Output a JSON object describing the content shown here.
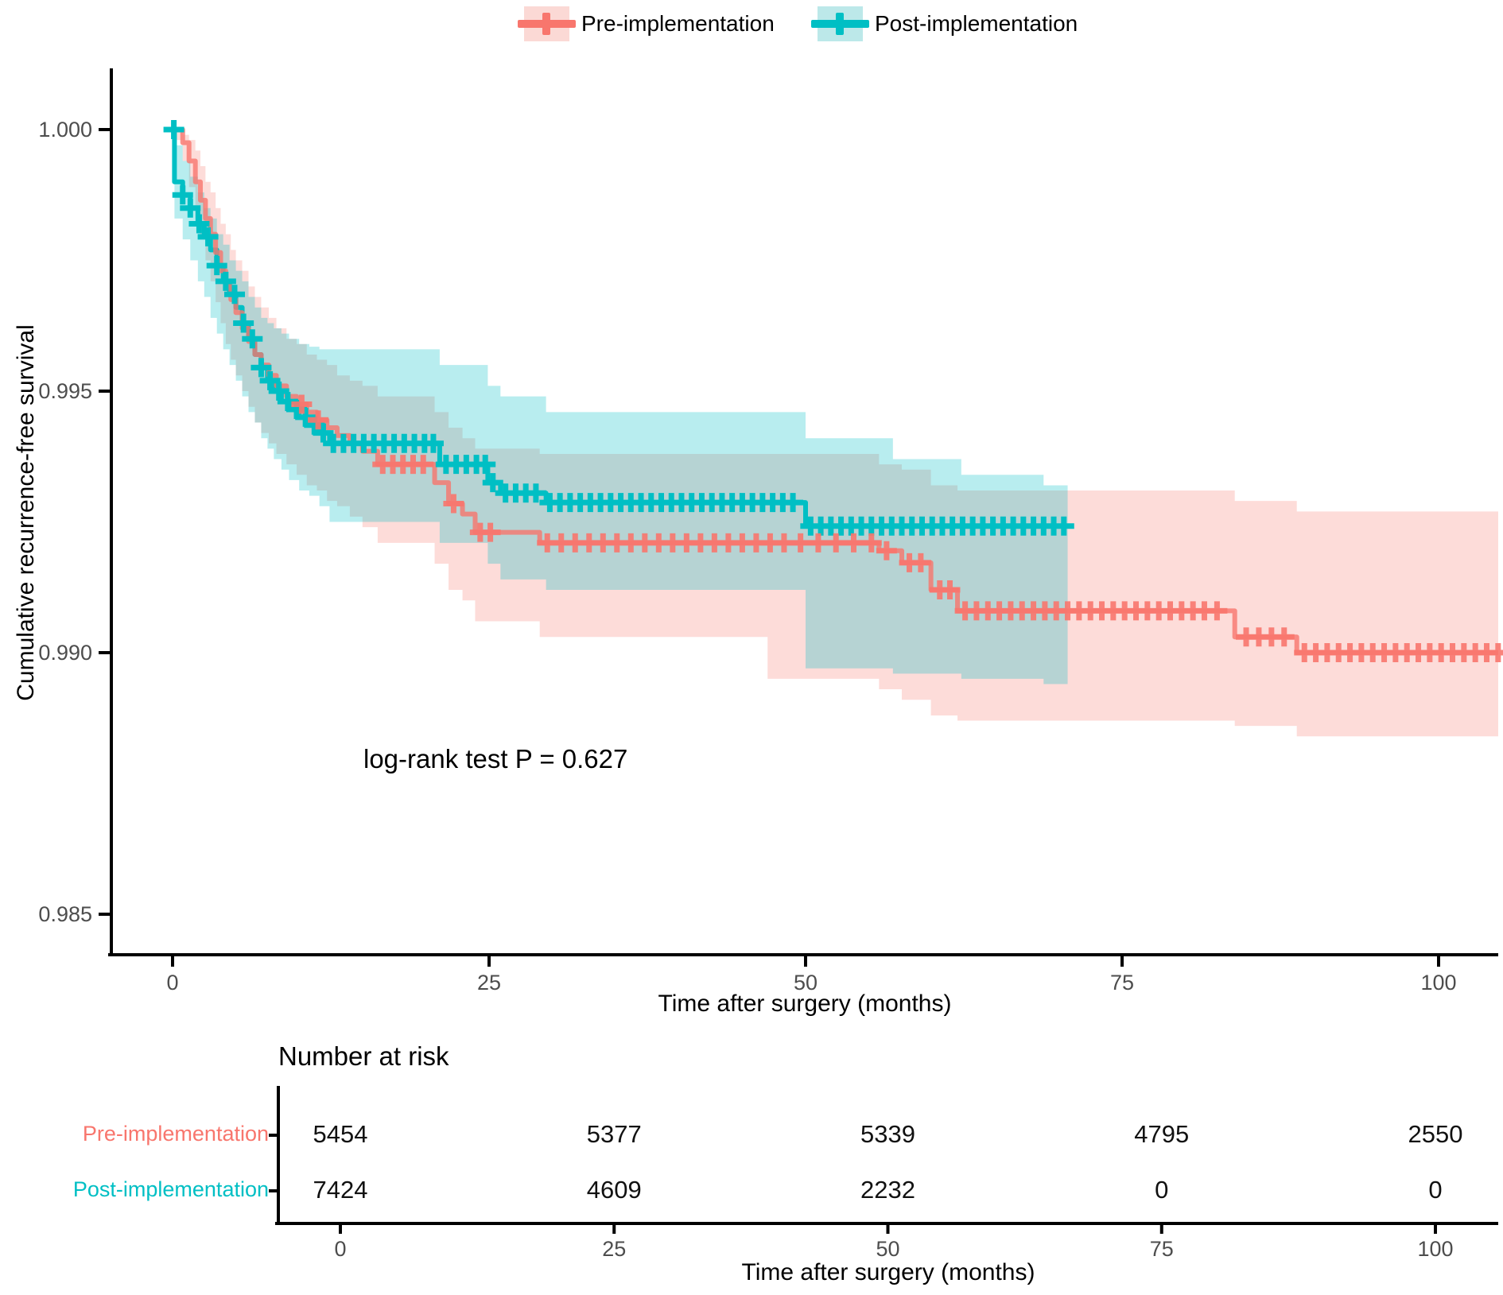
{
  "legend": {
    "items": [
      {
        "label": "Pre-implementation",
        "color": "#F8766D",
        "fill": "#FBD9D5"
      },
      {
        "label": "Post-implementation",
        "color": "#00BFC4",
        "fill": "#BCE8E9"
      }
    ]
  },
  "colors": {
    "pre": "#F8766D",
    "post": "#00BFC4",
    "axis": "#000000",
    "tick_label": "#4D4D4D",
    "risk_number": "#111111"
  },
  "chart_data": {
    "type": "line",
    "subtype": "kaplan-meier-step",
    "title": "",
    "xlabel": "Time after surgery (months)",
    "ylabel": "Cumulative recurrence-free survival",
    "annotation": "log-rank test P = 0.627",
    "xlim": [
      -5,
      105
    ],
    "ylim": [
      0.9845,
      1.0011
    ],
    "grid": false,
    "legend_position": "top",
    "xticks": [
      {
        "label": "0",
        "value": 0
      },
      {
        "label": "25",
        "value": 25
      },
      {
        "label": "50",
        "value": 50
      },
      {
        "label": "75",
        "value": 75
      },
      {
        "label": "100",
        "value": 100
      }
    ],
    "yticks": [
      {
        "label": "1.000",
        "value": 1.0
      },
      {
        "label": "0.995",
        "value": 0.995
      },
      {
        "label": "0.990",
        "value": 0.99
      },
      {
        "label": "0.985",
        "value": 0.985
      }
    ],
    "series": [
      {
        "name": "Pre-implementation",
        "color": "#F8766D",
        "end": 105.2,
        "steps": [
          [
            0,
            1.0
          ],
          [
            0.8,
            0.99975
          ],
          [
            1.3,
            0.9994
          ],
          [
            1.8,
            0.999
          ],
          [
            2.2,
            0.99865
          ],
          [
            2.6,
            0.9983
          ],
          [
            3.0,
            0.998
          ],
          [
            3.4,
            0.99765
          ],
          [
            3.8,
            0.9973
          ],
          [
            4.2,
            0.997
          ],
          [
            4.6,
            0.99675
          ],
          [
            5.0,
            0.9965
          ],
          [
            5.5,
            0.9962
          ],
          [
            6.0,
            0.99595
          ],
          [
            6.5,
            0.9957
          ],
          [
            7.0,
            0.9955
          ],
          [
            7.6,
            0.9953
          ],
          [
            8.2,
            0.9951
          ],
          [
            9.0,
            0.9949
          ],
          [
            9.8,
            0.99475
          ],
          [
            10.6,
            0.9946
          ],
          [
            11.4,
            0.99445
          ],
          [
            12.2,
            0.9943
          ],
          [
            13.0,
            0.99415
          ],
          [
            14.0,
            0.994
          ],
          [
            15.0,
            0.99385
          ],
          [
            16.2,
            0.9936
          ],
          [
            20.7,
            0.99325
          ],
          [
            21.8,
            0.99285
          ],
          [
            22.9,
            0.99265
          ],
          [
            23.9,
            0.9923
          ],
          [
            29.0,
            0.9921
          ],
          [
            55.8,
            0.99195
          ],
          [
            57.6,
            0.99172
          ],
          [
            59.9,
            0.9912
          ],
          [
            62.0,
            0.9908
          ],
          [
            83.9,
            0.9903
          ],
          [
            88.8,
            0.99
          ]
        ],
        "censors": [
          10.2,
          11.5,
          16.6,
          17.4,
          18.2,
          19.0,
          19.8,
          22.2,
          24.3,
          25.1,
          29.6,
          30.7,
          31.8,
          32.9,
          34.0,
          35.1,
          36.2,
          37.3,
          38.4,
          39.5,
          40.6,
          41.7,
          42.8,
          43.9,
          45.0,
          46.1,
          47.2,
          48.3,
          49.6,
          51.0,
          52.4,
          53.8,
          55.2,
          56.4,
          58.2,
          59.1,
          60.6,
          61.4,
          62.6,
          63.5,
          64.4,
          65.3,
          66.2,
          67.1,
          68.0,
          68.9,
          69.8,
          70.7,
          71.6,
          72.5,
          73.4,
          74.3,
          75.2,
          76.1,
          77.0,
          77.9,
          78.8,
          79.7,
          80.6,
          81.5,
          82.5,
          84.8,
          85.8,
          86.8,
          87.8,
          89.4,
          90.3,
          91.2,
          92.1,
          93.0,
          93.9,
          94.8,
          95.7,
          96.6,
          97.5,
          98.4,
          99.3,
          100.2,
          101.1,
          102.0,
          102.9,
          103.8,
          104.7
        ],
        "ci": [
          [
            0,
            0.9998,
            1.0
          ],
          [
            0.8,
            0.9994,
            0.9999
          ],
          [
            1.3,
            0.9989,
            0.9998
          ],
          [
            1.8,
            0.9983,
            0.9996
          ],
          [
            2.2,
            0.9979,
            0.9993
          ],
          [
            2.6,
            0.9975,
            0.999
          ],
          [
            3.0,
            0.9971,
            0.9988
          ],
          [
            3.4,
            0.9967,
            0.9985
          ],
          [
            3.8,
            0.9963,
            0.9982
          ],
          [
            4.2,
            0.9959,
            0.998
          ],
          [
            4.6,
            0.9956,
            0.9977
          ],
          [
            5.0,
            0.9953,
            0.9975
          ],
          [
            5.5,
            0.995,
            0.9973
          ],
          [
            6.0,
            0.9947,
            0.997
          ],
          [
            6.5,
            0.9944,
            0.9968
          ],
          [
            7.0,
            0.9942,
            0.9966
          ],
          [
            7.6,
            0.994,
            0.9964
          ],
          [
            8.2,
            0.9938,
            0.9962
          ],
          [
            9.0,
            0.9936,
            0.996
          ],
          [
            9.8,
            0.9934,
            0.9959
          ],
          [
            10.6,
            0.9932,
            0.9957
          ],
          [
            11.4,
            0.9931,
            0.9956
          ],
          [
            12.2,
            0.9929,
            0.9955
          ],
          [
            13.0,
            0.9928,
            0.9953
          ],
          [
            14.0,
            0.9926,
            0.9952
          ],
          [
            15.0,
            0.9924,
            0.9951
          ],
          [
            16.2,
            0.9921,
            0.9949
          ],
          [
            20.7,
            0.9917,
            0.9946
          ],
          [
            21.8,
            0.9912,
            0.9943
          ],
          [
            22.9,
            0.991,
            0.9941
          ],
          [
            23.9,
            0.9906,
            0.9939
          ],
          [
            29.0,
            0.9903,
            0.9938
          ],
          [
            47.0,
            0.9895,
            0.9938
          ],
          [
            55.8,
            0.9893,
            0.9936
          ],
          [
            57.6,
            0.9891,
            0.9935
          ],
          [
            59.9,
            0.9888,
            0.9932
          ],
          [
            62.0,
            0.9887,
            0.9931
          ],
          [
            83.9,
            0.9886,
            0.9929
          ],
          [
            88.8,
            0.9884,
            0.9927
          ]
        ]
      },
      {
        "name": "Post-implementation",
        "color": "#00BFC4",
        "end": 70.7,
        "steps": [
          [
            0,
            1.0
          ],
          [
            0.15,
            0.999
          ],
          [
            0.8,
            0.99875
          ],
          [
            1.4,
            0.9985
          ],
          [
            2.0,
            0.9982
          ],
          [
            2.5,
            0.99795
          ],
          [
            3.0,
            0.9977
          ],
          [
            3.5,
            0.9974
          ],
          [
            4.0,
            0.9971
          ],
          [
            4.5,
            0.99685
          ],
          [
            5.0,
            0.9966
          ],
          [
            5.5,
            0.9963
          ],
          [
            6.0,
            0.996
          ],
          [
            6.5,
            0.9957
          ],
          [
            7.0,
            0.99545
          ],
          [
            7.5,
            0.9952
          ],
          [
            8.0,
            0.995
          ],
          [
            8.6,
            0.9948
          ],
          [
            9.2,
            0.99465
          ],
          [
            10.0,
            0.9945
          ],
          [
            10.8,
            0.99435
          ],
          [
            11.6,
            0.9942
          ],
          [
            12.4,
            0.994
          ],
          [
            21.1,
            0.9936
          ],
          [
            24.9,
            0.99325
          ],
          [
            25.9,
            0.99305
          ],
          [
            29.5,
            0.99287
          ],
          [
            50.0,
            0.99242
          ]
        ],
        "censors": [
          0.1,
          0.8,
          1.4,
          2.1,
          2.8,
          3.5,
          4.2,
          4.9,
          5.6,
          6.3,
          7.0,
          7.7,
          8.4,
          9.1,
          9.8,
          10.5,
          11.2,
          11.9,
          12.7,
          13.5,
          14.3,
          15.1,
          15.9,
          16.7,
          17.5,
          18.3,
          19.1,
          19.9,
          20.6,
          21.6,
          22.4,
          23.2,
          24.0,
          24.7,
          25.3,
          26.3,
          27.1,
          27.9,
          28.7,
          29.8,
          30.6,
          31.4,
          32.2,
          33.0,
          33.8,
          34.6,
          35.4,
          36.2,
          37.0,
          37.8,
          38.6,
          39.4,
          40.2,
          41.0,
          41.8,
          42.6,
          43.4,
          44.2,
          45.0,
          45.8,
          46.6,
          47.4,
          48.2,
          49.0,
          50.4,
          51.2,
          52.0,
          52.8,
          53.6,
          54.4,
          55.2,
          56.0,
          56.8,
          57.6,
          58.4,
          59.2,
          60.0,
          60.8,
          61.6,
          62.4,
          63.2,
          64.0,
          64.8,
          65.6,
          66.4,
          67.2,
          68.0,
          68.8,
          69.6,
          70.4
        ],
        "ci": [
          [
            0,
            0.9997,
            1.0
          ],
          [
            0.15,
            0.9983,
            0.9997
          ],
          [
            0.8,
            0.9979,
            0.9994
          ],
          [
            1.4,
            0.9975,
            0.9991
          ],
          [
            2.0,
            0.9971,
            0.9988
          ],
          [
            2.5,
            0.9968,
            0.9985
          ],
          [
            3.0,
            0.9964,
            0.9983
          ],
          [
            3.5,
            0.9961,
            0.998
          ],
          [
            4.0,
            0.9958,
            0.9978
          ],
          [
            4.5,
            0.9955,
            0.9975
          ],
          [
            5.0,
            0.9952,
            0.9973
          ],
          [
            5.5,
            0.9949,
            0.9971
          ],
          [
            6.0,
            0.9946,
            0.9968
          ],
          [
            6.5,
            0.9944,
            0.9966
          ],
          [
            7.0,
            0.9941,
            0.9964
          ],
          [
            7.5,
            0.9939,
            0.9963
          ],
          [
            8.0,
            0.9937,
            0.9962
          ],
          [
            8.6,
            0.9935,
            0.9961
          ],
          [
            9.2,
            0.9933,
            0.996
          ],
          [
            10.0,
            0.9931,
            0.9959
          ],
          [
            10.8,
            0.993,
            0.99585
          ],
          [
            11.6,
            0.9928,
            0.9958
          ],
          [
            12.4,
            0.9925,
            0.9958
          ],
          [
            21.1,
            0.9921,
            0.9955
          ],
          [
            24.9,
            0.9917,
            0.9951
          ],
          [
            25.9,
            0.9914,
            0.9949
          ],
          [
            29.5,
            0.9912,
            0.9946
          ],
          [
            50.0,
            0.9897,
            0.9941
          ],
          [
            56.9,
            0.9896,
            0.9937
          ],
          [
            62.3,
            0.9895,
            0.9934
          ],
          [
            68.8,
            0.9894,
            0.9932
          ]
        ]
      }
    ]
  },
  "risk_table": {
    "title": "Number at risk",
    "xlabel": "Time after surgery (months)",
    "xticks": [
      {
        "label": "0",
        "value": 0
      },
      {
        "label": "25",
        "value": 25
      },
      {
        "label": "50",
        "value": 50
      },
      {
        "label": "75",
        "value": 75
      },
      {
        "label": "100",
        "value": 100
      }
    ],
    "rows": [
      {
        "label": "Pre-implementation",
        "color": "#F8766D",
        "values": [
          "5454",
          "5377",
          "5339",
          "4795",
          "2550"
        ]
      },
      {
        "label": "Post-implementation",
        "color": "#00BFC4",
        "values": [
          "7424",
          "4609",
          "2232",
          "0",
          "0"
        ]
      }
    ]
  }
}
